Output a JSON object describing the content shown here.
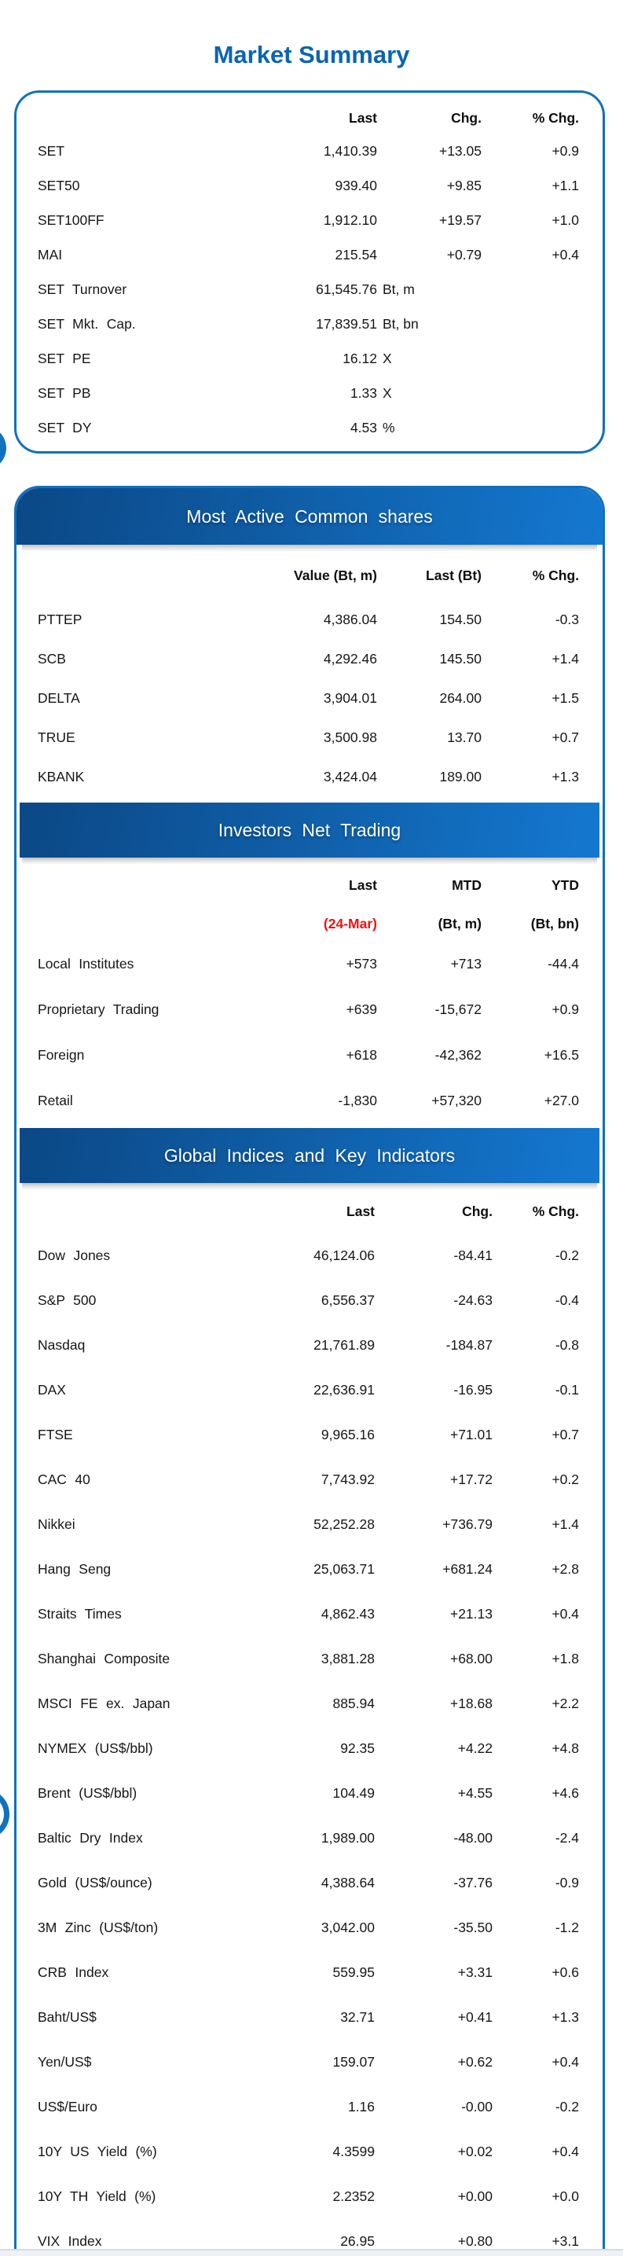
{
  "page": {
    "title": "Market Summary"
  },
  "summary": {
    "headers": [
      "Last",
      "Chg.",
      "% Chg."
    ],
    "rows": [
      {
        "label": "SET",
        "c1": "1,410.39",
        "c2": "+13.05",
        "c3": "+0.9"
      },
      {
        "label": "SET50",
        "c1": "939.40",
        "c2": "+9.85",
        "c3": "+1.1"
      },
      {
        "label": "SET100FF",
        "c1": "1,912.10",
        "c2": "+19.57",
        "c3": "+1.0"
      },
      {
        "label": "MAI",
        "c1": "215.54",
        "c2": "+0.79",
        "c3": "+0.4"
      },
      {
        "label": "SET Turnover",
        "c1": "61,545.76",
        "unit": "Bt, m"
      },
      {
        "label": "SET Mkt. Cap.",
        "c1": "17,839.51",
        "unit": "Bt, bn"
      },
      {
        "label": "SET PE",
        "c1": "16.12",
        "unit": "X"
      },
      {
        "label": "SET PB",
        "c1": "1.33",
        "unit": "X"
      },
      {
        "label": "SET DY",
        "c1": "4.53",
        "unit": "%"
      }
    ]
  },
  "most_active": {
    "title": "Most Active Common shares",
    "headers": [
      "Value (Bt, m)",
      "Last (Bt)",
      "% Chg."
    ],
    "rows": [
      {
        "label": "PTTEP",
        "c1": "4,386.04",
        "c2": "154.50",
        "c3": "-0.3"
      },
      {
        "label": "SCB",
        "c1": "4,292.46",
        "c2": "145.50",
        "c3": "+1.4"
      },
      {
        "label": "DELTA",
        "c1": "3,904.01",
        "c2": "264.00",
        "c3": "+1.5"
      },
      {
        "label": "TRUE",
        "c1": "3,500.98",
        "c2": "13.70",
        "c3": "+0.7"
      },
      {
        "label": "KBANK",
        "c1": "3,424.04",
        "c2": "189.00",
        "c3": "+1.3"
      }
    ]
  },
  "investors": {
    "title": "Investors Net Trading",
    "headers_line1": [
      "Last",
      "MTD",
      "YTD"
    ],
    "headers_line2": [
      "(24-Mar)",
      "(Bt, m)",
      "(Bt, bn)"
    ],
    "rows": [
      {
        "label": "Local Institutes",
        "c1": "+573",
        "c2": "+713",
        "c3": "-44.4"
      },
      {
        "label": "Proprietary Trading",
        "c1": "+639",
        "c2": "-15,672",
        "c3": "+0.9"
      },
      {
        "label": "Foreign",
        "c1": "+618",
        "c2": "-42,362",
        "c3": "+16.5"
      },
      {
        "label": "Retail",
        "c1": "-1,830",
        "c2": "+57,320",
        "c3": "+27.0"
      }
    ]
  },
  "global_indices": {
    "title": "Global Indices and Key Indicators",
    "headers": [
      "Last",
      "Chg.",
      "% Chg."
    ],
    "rows": [
      {
        "label": "Dow Jones",
        "c1": "46,124.06",
        "c2": "-84.41",
        "c3": "-0.2"
      },
      {
        "label": "S&P 500",
        "c1": "6,556.37",
        "c2": "-24.63",
        "c3": "-0.4"
      },
      {
        "label": "Nasdaq",
        "c1": "21,761.89",
        "c2": "-184.87",
        "c3": "-0.8"
      },
      {
        "label": "DAX",
        "c1": "22,636.91",
        "c2": "-16.95",
        "c3": "-0.1"
      },
      {
        "label": "FTSE",
        "c1": "9,965.16",
        "c2": "+71.01",
        "c3": "+0.7"
      },
      {
        "label": "CAC 40",
        "c1": "7,743.92",
        "c2": "+17.72",
        "c3": "+0.2"
      },
      {
        "label": "Nikkei",
        "c1": "52,252.28",
        "c2": "+736.79",
        "c3": "+1.4"
      },
      {
        "label": "Hang Seng",
        "c1": "25,063.71",
        "c2": "+681.24",
        "c3": "+2.8"
      },
      {
        "label": "Straits Times",
        "c1": "4,862.43",
        "c2": "+21.13",
        "c3": "+0.4"
      },
      {
        "label": "Shanghai Composite",
        "c1": "3,881.28",
        "c2": "+68.00",
        "c3": "+1.8"
      },
      {
        "label": "MSCI FE ex. Japan",
        "c1": "885.94",
        "c2": "+18.68",
        "c3": "+2.2"
      },
      {
        "label": "NYMEX (US$/bbl)",
        "c1": "92.35",
        "c2": "+4.22",
        "c3": "+4.8"
      },
      {
        "label": "Brent (US$/bbl)",
        "c1": "104.49",
        "c2": "+4.55",
        "c3": "+4.6"
      },
      {
        "label": "Baltic Dry Index",
        "c1": "1,989.00",
        "c2": "-48.00",
        "c3": "-2.4"
      },
      {
        "label": "Gold (US$/ounce)",
        "c1": "4,388.64",
        "c2": "-37.76",
        "c3": "-0.9"
      },
      {
        "label": "3M Zinc (US$/ton)",
        "c1": "3,042.00",
        "c2": "-35.50",
        "c3": "-1.2"
      },
      {
        "label": "CRB Index",
        "c1": "559.95",
        "c2": "+3.31",
        "c3": "+0.6"
      },
      {
        "label": "Baht/US$",
        "c1": "32.71",
        "c2": "+0.41",
        "c3": "+1.3"
      },
      {
        "label": "Yen/US$",
        "c1": "159.07",
        "c2": "+0.62",
        "c3": "+0.4"
      },
      {
        "label": "US$/Euro",
        "c1": "1.16",
        "c2": "-0.00",
        "c3": "-0.2"
      },
      {
        "label": "10Y US Yield (%)",
        "c1": "4.3599",
        "c2": "+0.02",
        "c3": "+0.4"
      },
      {
        "label": "10Y TH Yield (%)",
        "c1": "2.2352",
        "c2": "+0.00",
        "c3": "+0.0"
      },
      {
        "label": "VIX Index",
        "c1": "26.95",
        "c2": "+0.80",
        "c3": "+3.1"
      }
    ]
  },
  "colors": {
    "panel_border_blue": "#1170bd",
    "band_gradient_start": "#0b4886",
    "band_gradient_end": "#1478d0",
    "title_blue": "#0a65b2",
    "date_red": "#f01111"
  }
}
